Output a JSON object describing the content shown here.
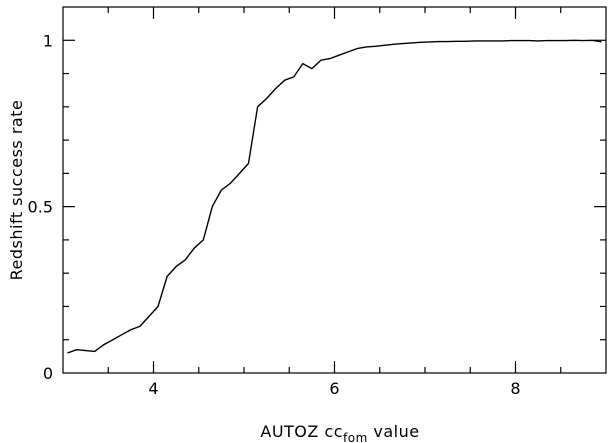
{
  "chart_data": {
    "type": "line",
    "title": "",
    "xlabel": "AUTOZ cc",
    "xlabel_subscript": "fom",
    "xlabel_suffix": " value",
    "ylabel": "Redshift success rate",
    "xlim": [
      3.0,
      9.0
    ],
    "ylim": [
      0.0,
      1.1
    ],
    "x_major_ticks": [
      4,
      6,
      8
    ],
    "x_tick_labels": [
      "4",
      "6",
      "8"
    ],
    "x_minor_step": 0.5,
    "y_major_ticks": [
      0,
      0.5,
      1
    ],
    "y_tick_labels": [
      "0",
      "0.5",
      "1"
    ],
    "y_minor_step": 0.1,
    "grid": false,
    "legend": "none",
    "line_color": "#000000",
    "series": [
      {
        "x": [
          3.05,
          3.15,
          3.35,
          3.45,
          3.55,
          3.65,
          3.75,
          3.85,
          3.95,
          4.05,
          4.15,
          4.25,
          4.35,
          4.45,
          4.55,
          4.65,
          4.75,
          4.85,
          4.95,
          5.05,
          5.15,
          5.25,
          5.35,
          5.45,
          5.55,
          5.65,
          5.75,
          5.85,
          5.95,
          6.05,
          6.15,
          6.25,
          6.35,
          6.45,
          6.55,
          6.65,
          6.75,
          6.85,
          6.95,
          7.05,
          7.15,
          7.25,
          7.35,
          7.45,
          7.55,
          7.65,
          7.75,
          7.85,
          7.95,
          8.05,
          8.15,
          8.25,
          8.35,
          8.45,
          8.55,
          8.65,
          8.75,
          8.85,
          8.95
        ],
        "y": [
          0.06,
          0.07,
          0.065,
          0.085,
          0.1,
          0.115,
          0.13,
          0.14,
          0.17,
          0.2,
          0.29,
          0.32,
          0.34,
          0.375,
          0.4,
          0.5,
          0.55,
          0.57,
          0.6,
          0.63,
          0.8,
          0.825,
          0.855,
          0.88,
          0.89,
          0.93,
          0.915,
          0.94,
          0.945,
          0.955,
          0.965,
          0.975,
          0.98,
          0.982,
          0.985,
          0.988,
          0.99,
          0.992,
          0.994,
          0.995,
          0.996,
          0.996,
          0.997,
          0.997,
          0.998,
          0.998,
          0.998,
          0.998,
          0.999,
          0.999,
          0.999,
          0.998,
          0.999,
          0.999,
          0.999,
          1.0,
          0.999,
          1.0,
          0.995
        ]
      }
    ]
  }
}
